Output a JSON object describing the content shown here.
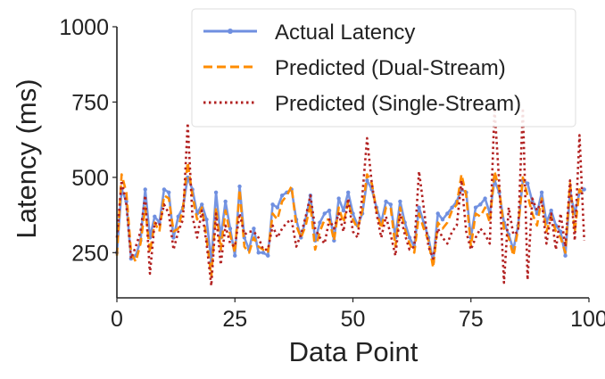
{
  "chart_data": {
    "type": "line",
    "title": "",
    "xlabel": "Data Point",
    "ylabel": "Latency (ms)",
    "xlim": [
      0,
      100
    ],
    "ylim": [
      100,
      1000
    ],
    "xticks": [
      0,
      25,
      50,
      75,
      100
    ],
    "yticks": [
      250,
      500,
      750,
      1000
    ],
    "x_tick_labels": [
      "0",
      "25",
      "50",
      "75",
      "100"
    ],
    "y_tick_labels": [
      "250",
      "500",
      "750",
      "1000"
    ],
    "grid": false,
    "legend_position": "top-right",
    "x": [
      0,
      1,
      2,
      3,
      4,
      5,
      6,
      7,
      8,
      9,
      10,
      11,
      12,
      13,
      14,
      15,
      16,
      17,
      18,
      19,
      20,
      21,
      22,
      23,
      24,
      25,
      26,
      27,
      28,
      29,
      30,
      31,
      32,
      33,
      34,
      35,
      36,
      37,
      38,
      39,
      40,
      41,
      42,
      43,
      44,
      45,
      46,
      47,
      48,
      49,
      50,
      51,
      52,
      53,
      54,
      55,
      56,
      57,
      58,
      59,
      60,
      61,
      62,
      63,
      64,
      65,
      66,
      67,
      68,
      69,
      70,
      71,
      72,
      73,
      74,
      75,
      76,
      77,
      78,
      79,
      80,
      81,
      82,
      83,
      84,
      85,
      86,
      87,
      88,
      89,
      90,
      91,
      92,
      93,
      94,
      95,
      96,
      97,
      98,
      99
    ],
    "series": [
      {
        "name": "Actual Latency",
        "color": "#6f8fe0",
        "style": "solid-marker",
        "values": [
          250,
          460,
          420,
          230,
          240,
          290,
          460,
          300,
          370,
          350,
          460,
          450,
          300,
          370,
          400,
          500,
          460,
          380,
          410,
          360,
          220,
          450,
          300,
          420,
          330,
          240,
          470,
          300,
          260,
          330,
          250,
          250,
          240,
          410,
          400,
          440,
          450,
          460,
          360,
          300,
          360,
          440,
          290,
          350,
          380,
          390,
          290,
          430,
          390,
          450,
          380,
          340,
          380,
          490,
          460,
          400,
          350,
          420,
          410,
          300,
          420,
          350,
          300,
          270,
          400,
          350,
          300,
          220,
          380,
          360,
          380,
          400,
          420,
          460,
          450,
          300,
          400,
          410,
          430,
          380,
          490,
          450,
          350,
          310,
          260,
          340,
          490,
          480,
          420,
          380,
          450,
          350,
          390,
          340,
          320,
          240,
          450,
          380,
          450,
          460
        ]
      },
      {
        "name": "Predicted (Dual-Stream)",
        "color": "#ff8c00",
        "style": "dashed",
        "values": [
          240,
          510,
          450,
          250,
          220,
          280,
          400,
          250,
          350,
          320,
          440,
          430,
          320,
          330,
          400,
          550,
          440,
          360,
          400,
          300,
          170,
          400,
          260,
          390,
          310,
          250,
          460,
          270,
          250,
          300,
          270,
          260,
          250,
          380,
          360,
          420,
          440,
          470,
          340,
          300,
          340,
          410,
          260,
          320,
          360,
          360,
          290,
          400,
          350,
          420,
          360,
          330,
          390,
          510,
          480,
          390,
          330,
          400,
          400,
          270,
          400,
          330,
          280,
          250,
          380,
          330,
          290,
          200,
          350,
          330,
          350,
          390,
          410,
          510,
          440,
          270,
          380,
          370,
          400,
          350,
          520,
          460,
          330,
          300,
          240,
          330,
          500,
          440,
          380,
          340,
          430,
          320,
          370,
          320,
          300,
          250,
          480,
          320,
          460,
          440
        ]
      },
      {
        "name": "Predicted (Single-Stream)",
        "color": "#b22222",
        "style": "dotted",
        "values": [
          300,
          490,
          410,
          230,
          270,
          320,
          440,
          180,
          350,
          340,
          410,
          380,
          260,
          320,
          360,
          680,
          370,
          300,
          390,
          280,
          140,
          380,
          210,
          340,
          280,
          270,
          380,
          310,
          320,
          320,
          300,
          260,
          260,
          340,
          300,
          330,
          350,
          360,
          270,
          310,
          370,
          440,
          330,
          300,
          280,
          360,
          330,
          380,
          320,
          430,
          320,
          300,
          440,
          630,
          480,
          380,
          300,
          370,
          310,
          240,
          380,
          310,
          260,
          270,
          520,
          400,
          270,
          230,
          330,
          300,
          280,
          320,
          340,
          490,
          320,
          260,
          300,
          330,
          310,
          280,
          730,
          480,
          150,
          400,
          310,
          320,
          730,
          160,
          430,
          390,
          420,
          280,
          380,
          260,
          380,
          270,
          490,
          290,
          640,
          290
        ]
      }
    ]
  }
}
